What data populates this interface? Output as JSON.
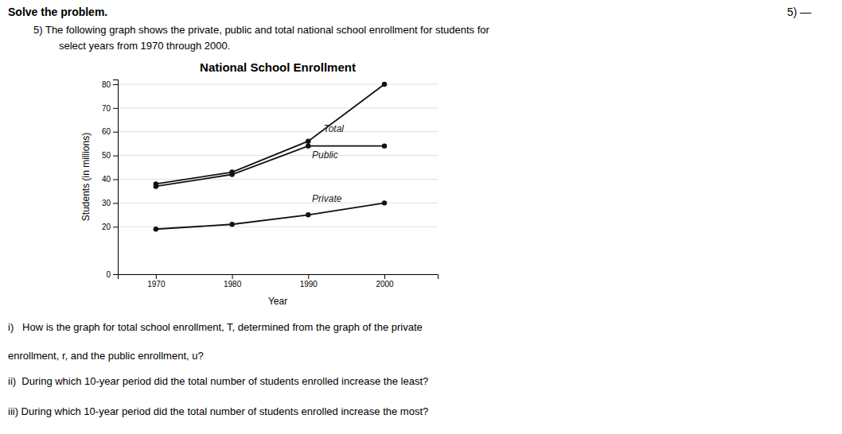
{
  "chart_data": {
    "type": "line",
    "title": "National School Enrollment",
    "x_label": "Year",
    "y_label": "Students (in millions)",
    "x": [
      1970,
      1980,
      1990,
      2000
    ],
    "series": [
      {
        "color": "#111111",
        "values": [
          38,
          43,
          56,
          80
        ]
      },
      {
        "color": "#111111",
        "values": [
          37,
          42,
          54,
          54
        ]
      },
      {
        "color": "#111111",
        "values": [
          19,
          21,
          25,
          30
        ]
      }
    ],
    "marker": "circle",
    "xlim": [
      1965,
      2007
    ],
    "xticks": [
      1970,
      1980,
      1990,
      2000
    ],
    "ylim": [
      0,
      82
    ],
    "yticks": [
      0,
      20,
      30,
      40,
      50,
      60,
      70,
      80
    ],
    "grid": true,
    "annotations": [
      {
        "text": "Total",
        "x": 1992,
        "y": 60
      },
      {
        "text": "Public",
        "x": 1990.5,
        "y": 49
      },
      {
        "text": "Private",
        "x": 1990.5,
        "y": 30.5
      }
    ]
  },
  "page_texts": {
    "header": "Solve the problem.",
    "number": "5) —",
    "problem": [
      "5) The following graph shows the private, public and total national school enrollment for students for",
      "select years from 1970 through 2000."
    ],
    "questions": [
      "i)   How is the graph for total school enrollment, T, determined from the graph of the private",
      "enrollment, r, and the public enrollment, u?",
      "ii)  During which 10-year period did the total number of students enrolled increase the least?",
      "iii) During which 10-year period did the total number of students enrolled increase the most?"
    ]
  }
}
